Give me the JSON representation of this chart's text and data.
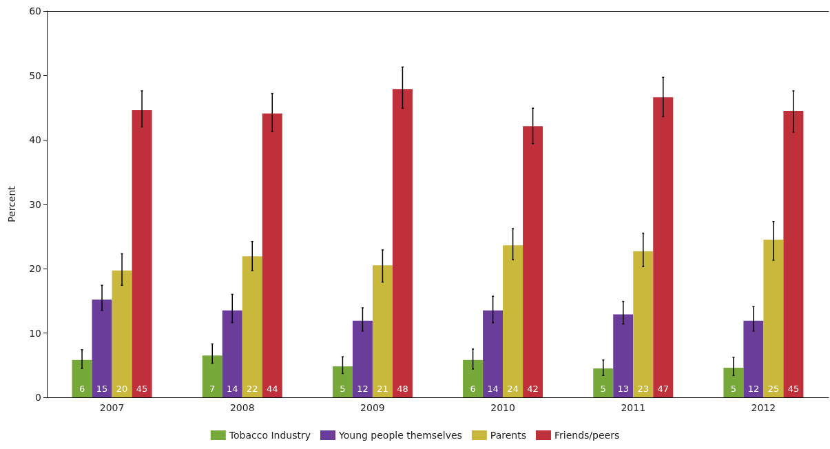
{
  "chart_data": {
    "type": "bar",
    "ylabel": "Percent",
    "categories": [
      "2007",
      "2008",
      "2009",
      "2010",
      "2011",
      "2012"
    ],
    "ylim": [
      0,
      60
    ],
    "yticks": [
      0,
      10,
      20,
      30,
      40,
      50,
      60
    ],
    "grid": false,
    "legend": "bottom",
    "series": [
      {
        "name": "Tobacco Industry",
        "color": "#77a83a",
        "values": [
          5.8,
          6.5,
          4.8,
          5.8,
          4.5,
          4.6
        ],
        "errors": [
          [
            4.5,
            7.4
          ],
          [
            5.3,
            8.3
          ],
          [
            3.7,
            6.3
          ],
          [
            4.4,
            7.5
          ],
          [
            3.4,
            5.8
          ],
          [
            3.4,
            6.2
          ]
        ],
        "value_labels": [
          "6",
          "7",
          "5",
          "6",
          "5",
          "5"
        ]
      },
      {
        "name": "Young people themselves",
        "color": "#6a3d9a",
        "values": [
          15.2,
          13.5,
          11.9,
          13.5,
          12.9,
          11.9
        ],
        "errors": [
          [
            13.5,
            17.4
          ],
          [
            11.6,
            16.0
          ],
          [
            10.3,
            13.9
          ],
          [
            11.6,
            15.7
          ],
          [
            11.4,
            14.9
          ],
          [
            10.3,
            14.1
          ]
        ],
        "value_labels": [
          "15",
          "14",
          "12",
          "14",
          "13",
          "12"
        ]
      },
      {
        "name": "Parents",
        "color": "#c9b83c",
        "values": [
          19.7,
          21.9,
          20.5,
          23.6,
          22.7,
          24.5
        ],
        "errors": [
          [
            17.4,
            22.3
          ],
          [
            19.7,
            24.2
          ],
          [
            17.9,
            22.9
          ],
          [
            21.4,
            26.2
          ],
          [
            20.3,
            25.5
          ],
          [
            21.3,
            27.3
          ]
        ],
        "value_labels": [
          "20",
          "22",
          "21",
          "24",
          "23",
          "25"
        ]
      },
      {
        "name": "Friends/peers",
        "color": "#c0303a",
        "values": [
          44.6,
          44.1,
          47.9,
          42.1,
          46.6,
          44.5
        ],
        "errors": [
          [
            42.0,
            47.6
          ],
          [
            41.3,
            47.2
          ],
          [
            44.9,
            51.3
          ],
          [
            39.4,
            44.9
          ],
          [
            43.6,
            49.7
          ],
          [
            41.2,
            47.6
          ]
        ],
        "value_labels": [
          "45",
          "44",
          "48",
          "42",
          "47",
          "45"
        ]
      }
    ]
  }
}
